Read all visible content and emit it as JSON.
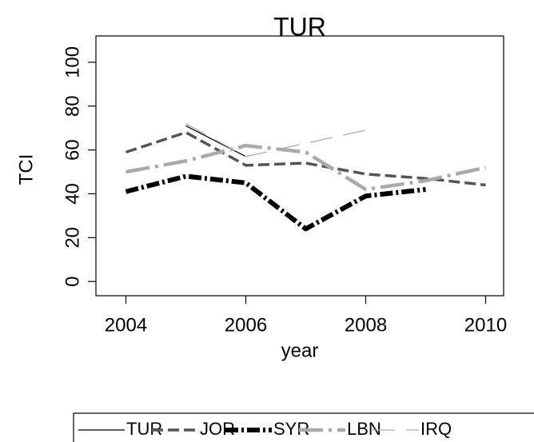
{
  "chart_data": {
    "type": "line",
    "title": "TUR",
    "x_label": "year",
    "y_label": "TCI",
    "x": [
      2004,
      2005,
      2006,
      2007,
      2008,
      2009,
      2010
    ],
    "series": [
      {
        "name": "TUR",
        "color": "#000000",
        "values": [
          null,
          71,
          57,
          null,
          null,
          null,
          null
        ]
      },
      {
        "name": "JOR",
        "color": "#555555",
        "values": [
          59,
          68,
          53,
          54,
          49,
          47,
          44
        ]
      },
      {
        "name": "SYR",
        "color": "#000000",
        "values": [
          41,
          48,
          45,
          24,
          39,
          42,
          null
        ]
      },
      {
        "name": "LBN",
        "color": "#aaaaaa",
        "values": [
          50,
          55,
          62,
          59,
          42,
          46,
          52
        ]
      },
      {
        "name": "IRQ",
        "color": "#aaaaaa",
        "values": [
          null,
          72,
          57,
          63,
          69,
          null,
          null
        ]
      }
    ],
    "xlim": [
      2003.5,
      2010.3
    ],
    "xticks": [
      2004,
      2006,
      2008,
      2010
    ],
    "ylim": [
      -6.5,
      112
    ],
    "yticks": [
      0,
      20,
      40,
      60,
      80,
      100
    ],
    "grid": false,
    "legend": "bottom"
  }
}
